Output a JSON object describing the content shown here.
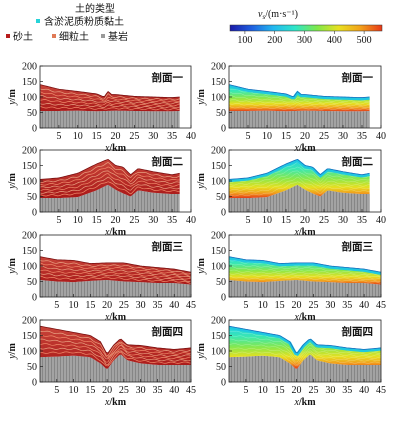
{
  "legend": {
    "title": "土的类型",
    "items": [
      {
        "label": "含淤泥质粉质黏土",
        "color": "#26d3d8"
      },
      {
        "label": "砂土",
        "color": "#b71c1c"
      },
      {
        "label": "细粒土",
        "color": "#e07a56"
      },
      {
        "label": "基岩",
        "color": "#9a9a9a"
      }
    ]
  },
  "colorbar": {
    "label_italic": "v",
    "label_sub": "s",
    "label_unit": "/(m·s⁻¹)",
    "ticks": [
      "100",
      "200",
      "300",
      "400",
      "500"
    ],
    "range": [
      50,
      560
    ],
    "colors": [
      "#1a1aa8",
      "#1f5fe0",
      "#22b8f0",
      "#2ee6c8",
      "#7de84a",
      "#e8e020",
      "#f2a21a",
      "#e83818"
    ]
  },
  "axes": {
    "ylabel_y": "y",
    "ylabel_unit": "/m",
    "xlabel_x": "x",
    "xlabel_unit": "/km"
  },
  "chart_data": [
    {
      "type": "area",
      "panel": "left",
      "title": "剖面一",
      "xlim": [
        0,
        40
      ],
      "ylim": [
        0,
        200
      ],
      "xticks": [
        5,
        10,
        15,
        20,
        25,
        30,
        35,
        40
      ],
      "yticks": [
        0,
        50,
        100,
        150,
        200
      ],
      "surface": {
        "x": [
          0,
          5,
          10,
          15,
          17,
          18,
          19,
          20,
          25,
          30,
          35,
          37
        ],
        "y": [
          140,
          125,
          118,
          110,
          100,
          118,
          108,
          108,
          102,
          100,
          98,
          100
        ]
      },
      "bedrock": {
        "x": [
          0,
          5,
          10,
          15,
          20,
          25,
          30,
          35,
          37
        ],
        "y": [
          55,
          55,
          56,
          54,
          56,
          55,
          54,
          54,
          55
        ]
      }
    },
    {
      "type": "area",
      "panel": "right",
      "title": "剖面一",
      "xlim": [
        0,
        40
      ],
      "ylim": [
        0,
        200
      ],
      "xticks": [
        5,
        10,
        15,
        20,
        25,
        30,
        35,
        40
      ],
      "yticks": [
        0,
        50,
        100,
        150,
        200
      ],
      "surface": {
        "x": [
          0,
          5,
          10,
          15,
          17,
          18,
          19,
          20,
          25,
          30,
          35,
          37
        ],
        "y": [
          140,
          125,
          118,
          110,
          100,
          118,
          108,
          108,
          102,
          100,
          98,
          100
        ]
      },
      "bedrock": {
        "x": [
          0,
          5,
          10,
          15,
          20,
          25,
          30,
          35,
          37
        ],
        "y": [
          55,
          55,
          56,
          54,
          56,
          55,
          54,
          54,
          55
        ]
      }
    },
    {
      "type": "area",
      "panel": "left",
      "title": "剖面二",
      "xlim": [
        0,
        40
      ],
      "ylim": [
        0,
        200
      ],
      "xticks": [
        5,
        10,
        15,
        20,
        25,
        30,
        35,
        40
      ],
      "yticks": [
        0,
        50,
        100,
        150,
        200
      ],
      "surface": {
        "x": [
          0,
          5,
          10,
          15,
          18,
          20,
          22,
          24,
          26,
          30,
          35,
          37
        ],
        "y": [
          105,
          110,
          125,
          155,
          170,
          150,
          145,
          120,
          140,
          130,
          120,
          125
        ]
      },
      "bedrock": {
        "x": [
          0,
          5,
          10,
          15,
          18,
          20,
          22,
          24,
          26,
          30,
          35,
          37
        ],
        "y": [
          45,
          45,
          48,
          70,
          88,
          72,
          60,
          50,
          70,
          62,
          58,
          58
        ]
      }
    },
    {
      "type": "area",
      "panel": "right",
      "title": "剖面二",
      "xlim": [
        0,
        40
      ],
      "ylim": [
        0,
        200
      ],
      "xticks": [
        5,
        10,
        15,
        20,
        25,
        30,
        35,
        40
      ],
      "yticks": [
        0,
        50,
        100,
        150,
        200
      ],
      "surface": {
        "x": [
          0,
          5,
          10,
          15,
          18,
          20,
          22,
          24,
          26,
          30,
          35,
          37
        ],
        "y": [
          105,
          110,
          125,
          155,
          170,
          150,
          145,
          120,
          140,
          130,
          120,
          125
        ]
      },
      "bedrock": {
        "x": [
          0,
          5,
          10,
          15,
          18,
          20,
          22,
          24,
          26,
          30,
          35,
          37
        ],
        "y": [
          45,
          45,
          48,
          70,
          88,
          72,
          60,
          50,
          70,
          62,
          58,
          58
        ]
      }
    },
    {
      "type": "area",
      "panel": "left",
      "title": "剖面三",
      "xlim": [
        0,
        45
      ],
      "ylim": [
        0,
        200
      ],
      "xticks": [
        5,
        10,
        15,
        20,
        25,
        30,
        35,
        40,
        45
      ],
      "yticks": [
        0,
        50,
        100,
        150,
        200
      ],
      "surface": {
        "x": [
          0,
          5,
          10,
          15,
          20,
          25,
          30,
          35,
          40,
          45
        ],
        "y": [
          130,
          120,
          118,
          108,
          110,
          110,
          100,
          95,
          90,
          80
        ]
      },
      "bedrock": {
        "x": [
          0,
          5,
          10,
          15,
          20,
          25,
          30,
          35,
          40,
          45
        ],
        "y": [
          55,
          50,
          48,
          52,
          55,
          50,
          48,
          45,
          45,
          40
        ]
      }
    },
    {
      "type": "area",
      "panel": "right",
      "title": "剖面三",
      "xlim": [
        0,
        45
      ],
      "ylim": [
        0,
        200
      ],
      "xticks": [
        5,
        10,
        15,
        20,
        25,
        30,
        35,
        40,
        45
      ],
      "yticks": [
        0,
        50,
        100,
        150,
        200
      ],
      "surface": {
        "x": [
          0,
          5,
          10,
          15,
          20,
          25,
          30,
          35,
          40,
          45
        ],
        "y": [
          130,
          120,
          118,
          108,
          110,
          110,
          100,
          95,
          90,
          80
        ]
      },
      "bedrock": {
        "x": [
          0,
          5,
          10,
          15,
          20,
          25,
          30,
          35,
          40,
          45
        ],
        "y": [
          55,
          50,
          48,
          52,
          55,
          50,
          48,
          45,
          45,
          40
        ]
      }
    },
    {
      "type": "area",
      "panel": "left",
      "title": "剖面四",
      "xlim": [
        0,
        45
      ],
      "ylim": [
        0,
        200
      ],
      "xticks": [
        5,
        10,
        15,
        20,
        25,
        30,
        35,
        40,
        45
      ],
      "yticks": [
        0,
        50,
        100,
        150,
        200
      ],
      "surface": {
        "x": [
          0,
          5,
          10,
          15,
          18,
          20,
          22,
          24,
          26,
          30,
          35,
          40,
          45
        ],
        "y": [
          180,
          170,
          160,
          150,
          130,
          90,
          120,
          140,
          120,
          118,
          110,
          105,
          110
        ]
      },
      "bedrock": {
        "x": [
          0,
          5,
          10,
          15,
          18,
          20,
          22,
          24,
          26,
          30,
          35,
          40,
          45
        ],
        "y": [
          80,
          82,
          85,
          80,
          60,
          40,
          70,
          90,
          70,
          60,
          55,
          55,
          55
        ]
      }
    },
    {
      "type": "area",
      "panel": "right",
      "title": "剖面四",
      "xlim": [
        0,
        45
      ],
      "ylim": [
        0,
        200
      ],
      "xticks": [
        5,
        10,
        15,
        20,
        25,
        30,
        35,
        40,
        45
      ],
      "yticks": [
        0,
        50,
        100,
        150,
        200
      ],
      "surface": {
        "x": [
          0,
          5,
          10,
          15,
          18,
          20,
          22,
          24,
          26,
          30,
          35,
          40,
          45
        ],
        "y": [
          180,
          170,
          160,
          150,
          130,
          90,
          120,
          140,
          120,
          118,
          110,
          105,
          110
        ]
      },
      "bedrock": {
        "x": [
          0,
          5,
          10,
          15,
          18,
          20,
          22,
          24,
          26,
          30,
          35,
          40,
          45
        ],
        "y": [
          80,
          82,
          85,
          80,
          60,
          40,
          70,
          90,
          70,
          60,
          55,
          55,
          55
        ]
      }
    }
  ]
}
